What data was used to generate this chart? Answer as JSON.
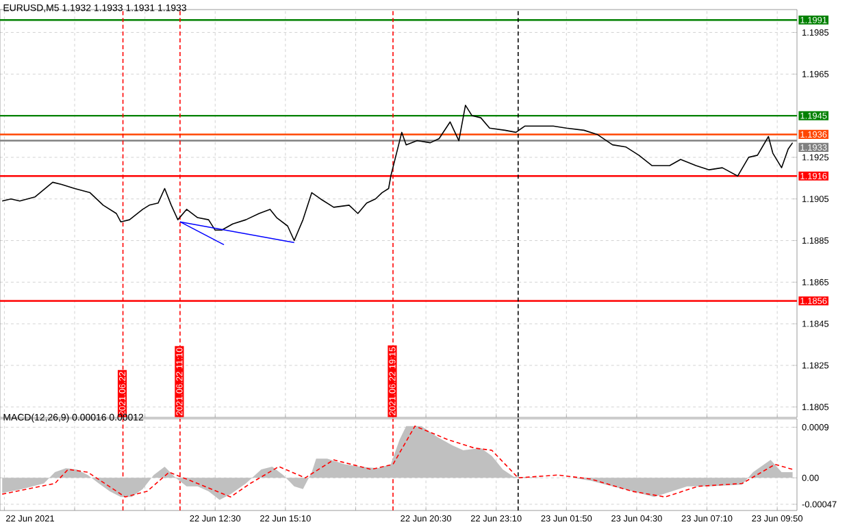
{
  "chart_data": [
    {
      "type": "line",
      "title": "EURUSD,M5  1.1932 1.1933 1.1931 1.1933",
      "xlim": [
        "2021-06-22T04:20",
        "2021-06-23T10:35"
      ],
      "xticks": [
        {
          "value": "2021-06-22T04:30",
          "label": null
        },
        {
          "value": "2021-06-22T07:10",
          "label": null
        },
        {
          "value": "2021-06-22T09:50",
          "label": null
        },
        {
          "value": "2021-06-22T12:30",
          "label": null
        },
        {
          "value": "2021-06-22T15:10",
          "label": null
        },
        {
          "value": "2021-06-22T17:50",
          "label": null
        },
        {
          "value": "2021-06-22T20:30",
          "label": null
        },
        {
          "value": "2021-06-22T23:10",
          "label": null
        },
        {
          "value": "2021-06-23T01:50",
          "label": null
        },
        {
          "value": "2021-06-23T04:30",
          "label": null
        },
        {
          "value": "2021-06-23T07:10",
          "label": null
        },
        {
          "value": "2021-06-23T09:50",
          "label": null
        }
      ],
      "ylim": [
        1.18,
        1.1996
      ],
      "yticks": [
        1.1805,
        1.1825,
        1.1845,
        1.1865,
        1.1885,
        1.1905,
        1.1925,
        {
          "value": 1.1945,
          "label": null
        },
        1.1965,
        1.1985
      ],
      "tick_labels": "y",
      "grid": true,
      "series": [
        {
          "color": "#000000",
          "x": [
            "2021-06-22T04:25",
            "2021-06-22T04:45",
            "2021-06-22T05:05",
            "2021-06-22T05:40",
            "2021-06-22T06:20",
            "2021-06-22T06:40",
            "2021-06-22T07:10",
            "2021-06-22T07:45",
            "2021-06-22T08:15",
            "2021-06-22T08:45",
            "2021-06-22T08:55",
            "2021-06-22T09:15",
            "2021-06-22T09:45",
            "2021-06-22T10:00",
            "2021-06-22T10:20",
            "2021-06-22T10:35",
            "2021-06-22T10:50",
            "2021-06-22T11:05",
            "2021-06-22T11:25",
            "2021-06-22T11:50",
            "2021-06-22T12:15",
            "2021-06-22T12:30",
            "2021-06-22T12:45",
            "2021-06-22T13:10",
            "2021-06-22T13:40",
            "2021-06-22T14:10",
            "2021-06-22T14:35",
            "2021-06-22T14:50",
            "2021-06-22T15:15",
            "2021-06-22T15:30",
            "2021-06-22T15:50",
            "2021-06-22T16:10",
            "2021-06-22T16:30",
            "2021-06-22T17:00",
            "2021-06-22T17:35",
            "2021-06-22T17:55",
            "2021-06-22T18:15",
            "2021-06-22T18:35",
            "2021-06-22T18:50",
            "2021-06-22T19:05",
            "2021-06-22T19:10",
            "2021-06-22T19:35",
            "2021-06-22T19:45",
            "2021-06-22T20:10",
            "2021-06-22T20:40",
            "2021-06-22T21:00",
            "2021-06-22T21:25",
            "2021-06-22T21:45",
            "2021-06-22T22:00",
            "2021-06-22T22:15",
            "2021-06-22T22:35",
            "2021-06-22T22:55",
            "2021-06-22T23:30",
            "2021-06-22T23:55",
            "2021-06-23T00:15",
            "2021-06-23T00:50",
            "2021-06-23T01:20",
            "2021-06-23T01:50",
            "2021-06-23T02:30",
            "2021-06-23T03:00",
            "2021-06-23T03:35",
            "2021-06-23T04:05",
            "2021-06-23T04:35",
            "2021-06-23T05:05",
            "2021-06-23T05:45",
            "2021-06-23T06:10",
            "2021-06-23T06:45",
            "2021-06-23T07:15",
            "2021-06-23T07:45",
            "2021-06-23T08:20",
            "2021-06-23T08:45",
            "2021-06-23T09:05",
            "2021-06-23T09:30",
            "2021-06-23T09:40",
            "2021-06-23T10:00",
            "2021-06-23T10:15",
            "2021-06-23T10:25"
          ],
          "values": [
            1.1904,
            1.1905,
            1.1904,
            1.1906,
            1.1913,
            1.1912,
            1.191,
            1.1908,
            1.1902,
            1.1898,
            1.1894,
            1.1895,
            1.19,
            1.1902,
            1.1903,
            1.191,
            1.1902,
            1.1895,
            1.19,
            1.1896,
            1.1895,
            1.189,
            1.189,
            1.1893,
            1.1895,
            1.1898,
            1.19,
            1.1896,
            1.1892,
            1.1885,
            1.1895,
            1.1908,
            1.1905,
            1.1901,
            1.1902,
            1.1898,
            1.1903,
            1.1905,
            1.1908,
            1.191,
            1.1916,
            1.1937,
            1.1931,
            1.1933,
            1.1932,
            1.1934,
            1.1942,
            1.1933,
            1.195,
            1.1945,
            1.1944,
            1.1939,
            1.1938,
            1.1937,
            1.194,
            1.194,
            1.194,
            1.1939,
            1.1938,
            1.1936,
            1.1931,
            1.193,
            1.1926,
            1.1921,
            1.1921,
            1.1924,
            1.1921,
            1.1919,
            1.192,
            1.1916,
            1.1925,
            1.1926,
            1.1935,
            1.1927,
            1.192,
            1.1929,
            1.1932
          ]
        },
        {
          "type": "line",
          "color": "#0000ff",
          "x": [
            "2021-06-22T11:10",
            "2021-06-22T12:50"
          ],
          "values": [
            1.1894,
            1.1883
          ]
        },
        {
          "type": "line",
          "color": "#0000ff",
          "x": [
            "2021-06-22T11:10",
            "2021-06-22T15:30"
          ],
          "values": [
            1.1894,
            1.1884
          ]
        }
      ],
      "ref_lines": [
        {
          "axis": "y",
          "value": 1.1991,
          "label": "1.1991",
          "color": "#008000"
        },
        {
          "axis": "y",
          "value": 1.1945,
          "label": "1.1945",
          "color": "#008000"
        },
        {
          "axis": "y",
          "value": 1.1936,
          "label": "1.1936",
          "color": "#ff4500"
        },
        {
          "axis": "y",
          "value": 1.1933,
          "label": "1.1933",
          "color": "#808080"
        },
        {
          "axis": "y",
          "value": 1.1916,
          "label": "1.1916",
          "color": "#ff0000"
        },
        {
          "axis": "y",
          "value": 1.1856,
          "label": "1.1856",
          "color": "#ff0000"
        },
        {
          "axis": "x",
          "value": "2021-06-22T09:00",
          "label": "2021.06.22",
          "color": "#ff0000",
          "line_style": "dashed"
        },
        {
          "axis": "x",
          "value": "2021-06-22T11:10",
          "label": "2021.06.22 11:10",
          "color": "#ff0000",
          "line_style": "dashed"
        },
        {
          "axis": "x",
          "value": "2021-06-22T19:15",
          "label": "2021.06.22 19:15",
          "color": "#ff0000",
          "line_style": "dashed"
        },
        {
          "axis": "x",
          "value": "2021-06-23T00:00",
          "color": "#000000",
          "line_style": "dashed"
        }
      ]
    },
    {
      "type": "area",
      "title": "MACD(12,26,9) 0.00016 0.00012",
      "xlim": [
        "2021-06-22T04:20",
        "2021-06-23T10:35"
      ],
      "xticks": [
        {
          "value": "2021-06-22T04:30",
          "label": "22 Jun 2021"
        },
        {
          "value": "2021-06-22T07:10",
          "label": null
        },
        {
          "value": "2021-06-22T09:50",
          "label": null
        },
        {
          "value": "2021-06-22T12:30",
          "label": "22 Jun 12:30"
        },
        {
          "value": "2021-06-22T15:10",
          "label": "22 Jun 15:10"
        },
        {
          "value": "2021-06-22T17:50",
          "label": null
        },
        {
          "value": "2021-06-22T20:30",
          "label": "22 Jun 20:30"
        },
        {
          "value": "2021-06-22T23:10",
          "label": "22 Jun 23:10"
        },
        {
          "value": "2021-06-23T01:50",
          "label": "23 Jun 01:50"
        },
        {
          "value": "2021-06-23T04:30",
          "label": "23 Jun 04:30"
        },
        {
          "value": "2021-06-23T07:10",
          "label": "23 Jun 07:10"
        },
        {
          "value": "2021-06-23T09:50",
          "label": "23 Jun 09:50"
        }
      ],
      "ylim": [
        -0.00058,
        0.00105
      ],
      "yticks": [
        {
          "value": -0.00047,
          "label": "-0.00047"
        },
        {
          "value": 0,
          "label": "0.00"
        },
        {
          "value": 0.0009,
          "label": "0.0009"
        }
      ],
      "grid": true,
      "series": [
        {
          "color": "#c0c0c0",
          "x": [
            "2021-06-22T04:25",
            "2021-06-22T05:10",
            "2021-06-22T06:00",
            "2021-06-22T06:25",
            "2021-06-22T06:50",
            "2021-06-22T07:15",
            "2021-06-22T07:40",
            "2021-06-22T08:05",
            "2021-06-22T08:30",
            "2021-06-22T08:55",
            "2021-06-22T09:20",
            "2021-06-22T09:45",
            "2021-06-22T10:10",
            "2021-06-22T10:35",
            "2021-06-22T11:00",
            "2021-06-22T11:25",
            "2021-06-22T11:50",
            "2021-06-22T12:15",
            "2021-06-22T12:40",
            "2021-06-22T13:05",
            "2021-06-22T13:40",
            "2021-06-22T14:15",
            "2021-06-22T14:40",
            "2021-06-22T15:05",
            "2021-06-22T15:30",
            "2021-06-22T15:50",
            "2021-06-22T16:10",
            "2021-06-22T16:20",
            "2021-06-22T16:45",
            "2021-06-22T17:25",
            "2021-06-22T18:00",
            "2021-06-22T18:40",
            "2021-06-22T19:10",
            "2021-06-22T19:30",
            "2021-06-22T19:45",
            "2021-06-22T20:20",
            "2021-06-22T20:55",
            "2021-06-22T21:30",
            "2021-06-22T21:55",
            "2021-06-22T22:35",
            "2021-06-22T23:00",
            "2021-06-22T23:25",
            "2021-06-22T23:50",
            "2021-06-23T01:05",
            "2021-06-23T02:05",
            "2021-06-23T02:45",
            "2021-06-23T03:35",
            "2021-06-23T04:20",
            "2021-06-23T05:10",
            "2021-06-23T05:50",
            "2021-06-23T06:25",
            "2021-06-23T07:15",
            "2021-06-23T08:30",
            "2021-06-23T08:55",
            "2021-06-23T09:35",
            "2021-06-23T10:00",
            "2021-06-23T10:25"
          ],
          "values": [
            -0.00027,
            -0.0002,
            -0.0001,
            0.0001,
            0.00017,
            0.00015,
            5e-05,
            -0.0001,
            -0.00024,
            -0.00034,
            -0.00034,
            -0.0002,
            5e-05,
            0.0002,
            0,
            -0.00015,
            -0.00015,
            -0.00024,
            -0.00039,
            -0.00029,
            -0.0001,
            0.00015,
            0.0002,
            5e-05,
            -0.00015,
            -0.0002,
            0.0001,
            0.00034,
            0.00034,
            0.00024,
            0.0002,
            0.00017,
            0.00024,
            0.00068,
            0.00092,
            0.00092,
            0.00073,
            0.00058,
            0.00049,
            0.00053,
            0.00039,
            0.00015,
            2e-05,
            0,
            0,
            -5e-05,
            -0.00015,
            -0.00024,
            -0.00034,
            -0.00024,
            -0.00015,
            -0.00015,
            -0.00012,
            0.0001,
            0.00032,
            0.0001,
            0.0001
          ]
        },
        {
          "type": "line",
          "color": "#ff0000",
          "line_style": "dashed",
          "x": [
            "2021-06-22T04:25",
            "2021-06-22T06:25",
            "2021-06-22T06:55",
            "2021-06-22T07:40",
            "2021-06-22T09:05",
            "2021-06-22T09:55",
            "2021-06-22T10:45",
            "2021-06-22T11:50",
            "2021-06-22T13:05",
            "2021-06-22T13:50",
            "2021-06-22T14:55",
            "2021-06-22T15:55",
            "2021-06-22T17:00",
            "2021-06-22T18:25",
            "2021-06-22T19:15",
            "2021-06-22T20:05",
            "2021-06-22T21:20",
            "2021-06-22T22:20",
            "2021-06-22T23:00",
            "2021-06-23T00:00",
            "2021-06-23T01:30",
            "2021-06-23T02:45",
            "2021-06-23T04:20",
            "2021-06-23T05:35",
            "2021-06-23T06:50",
            "2021-06-23T08:30",
            "2021-06-23T09:45",
            "2021-06-23T10:25"
          ],
          "values": [
            -0.00029,
            -0.0001,
            0.00015,
            0.0001,
            -0.00034,
            -0.00024,
            0.0001,
            -0.0001,
            -0.00034,
            -0.0001,
            0.0002,
            0,
            0.00032,
            0.00015,
            0.00024,
            0.00092,
            0.00068,
            0.00053,
            0.00049,
            0,
            5e-05,
            -2e-05,
            -0.00024,
            -0.00034,
            -0.00015,
            -0.0001,
            0.00024,
            0.00015
          ]
        }
      ],
      "ref_lines": [
        {
          "axis": "x",
          "value": "2021-06-22T09:00",
          "color": "#ff0000",
          "line_style": "dashed"
        },
        {
          "axis": "x",
          "value": "2021-06-22T11:10",
          "color": "#ff0000",
          "line_style": "dashed"
        },
        {
          "axis": "x",
          "value": "2021-06-22T19:15",
          "color": "#ff0000",
          "line_style": "dashed"
        },
        {
          "axis": "x",
          "value": "2021-06-23T00:00",
          "color": "#000000",
          "line_style": "dashed"
        }
      ]
    }
  ]
}
